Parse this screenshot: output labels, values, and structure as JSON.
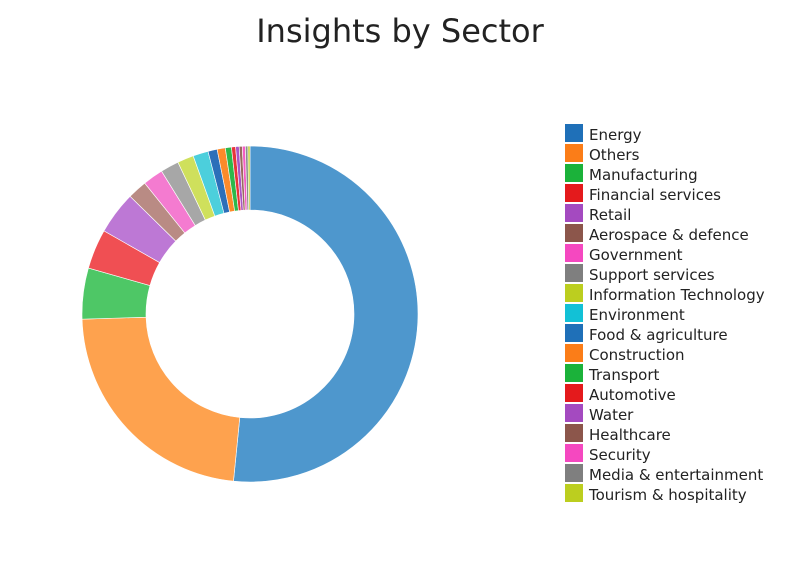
{
  "chart_data": {
    "type": "pie",
    "title": "Insights by Sector",
    "hole": true,
    "legend_position": "right",
    "categories": [
      "Energy",
      "Others",
      "Manufacturing",
      "Financial services",
      "Retail",
      "Aerospace & defence",
      "Government",
      "Support services",
      "Information Technology",
      "Environment",
      "Food & agriculture",
      "Construction",
      "Transport",
      "Automotive",
      "Water",
      "Healthcare",
      "Security",
      "Media & entertainment",
      "Tourism & hospitality"
    ],
    "values": [
      52.6,
      23.4,
      5.0,
      3.9,
      4.2,
      1.9,
      2.0,
      1.8,
      1.6,
      1.5,
      0.9,
      0.8,
      0.6,
      0.4,
      0.35,
      0.3,
      0.3,
      0.25,
      0.2
    ],
    "colors": [
      "#4e97cd",
      "#fea24e",
      "#4ec766",
      "#f04f53",
      "#bd78d5",
      "#b98b84",
      "#f47bd0",
      "#a7a7a7",
      "#cfe05c",
      "#4ccfdc",
      "#2c6fb9",
      "#fb8a2a",
      "#2db84a",
      "#e83539",
      "#aa55c6",
      "#9a6a5f",
      "#f45dc4",
      "#8d8d8d",
      "#bfcf2c"
    ],
    "legend_colors": [
      "#1f70b8",
      "#fb7d18",
      "#1bb23a",
      "#e41a1c",
      "#a44ac0",
      "#8c564b",
      "#f548c0",
      "#7f7f7f",
      "#bcce1f",
      "#12c1d6",
      "#1f70b8",
      "#fb7d18",
      "#1bb23a",
      "#e41a1c",
      "#a44ac0",
      "#8c564b",
      "#f548c0",
      "#7f7f7f",
      "#bcce1f"
    ]
  }
}
